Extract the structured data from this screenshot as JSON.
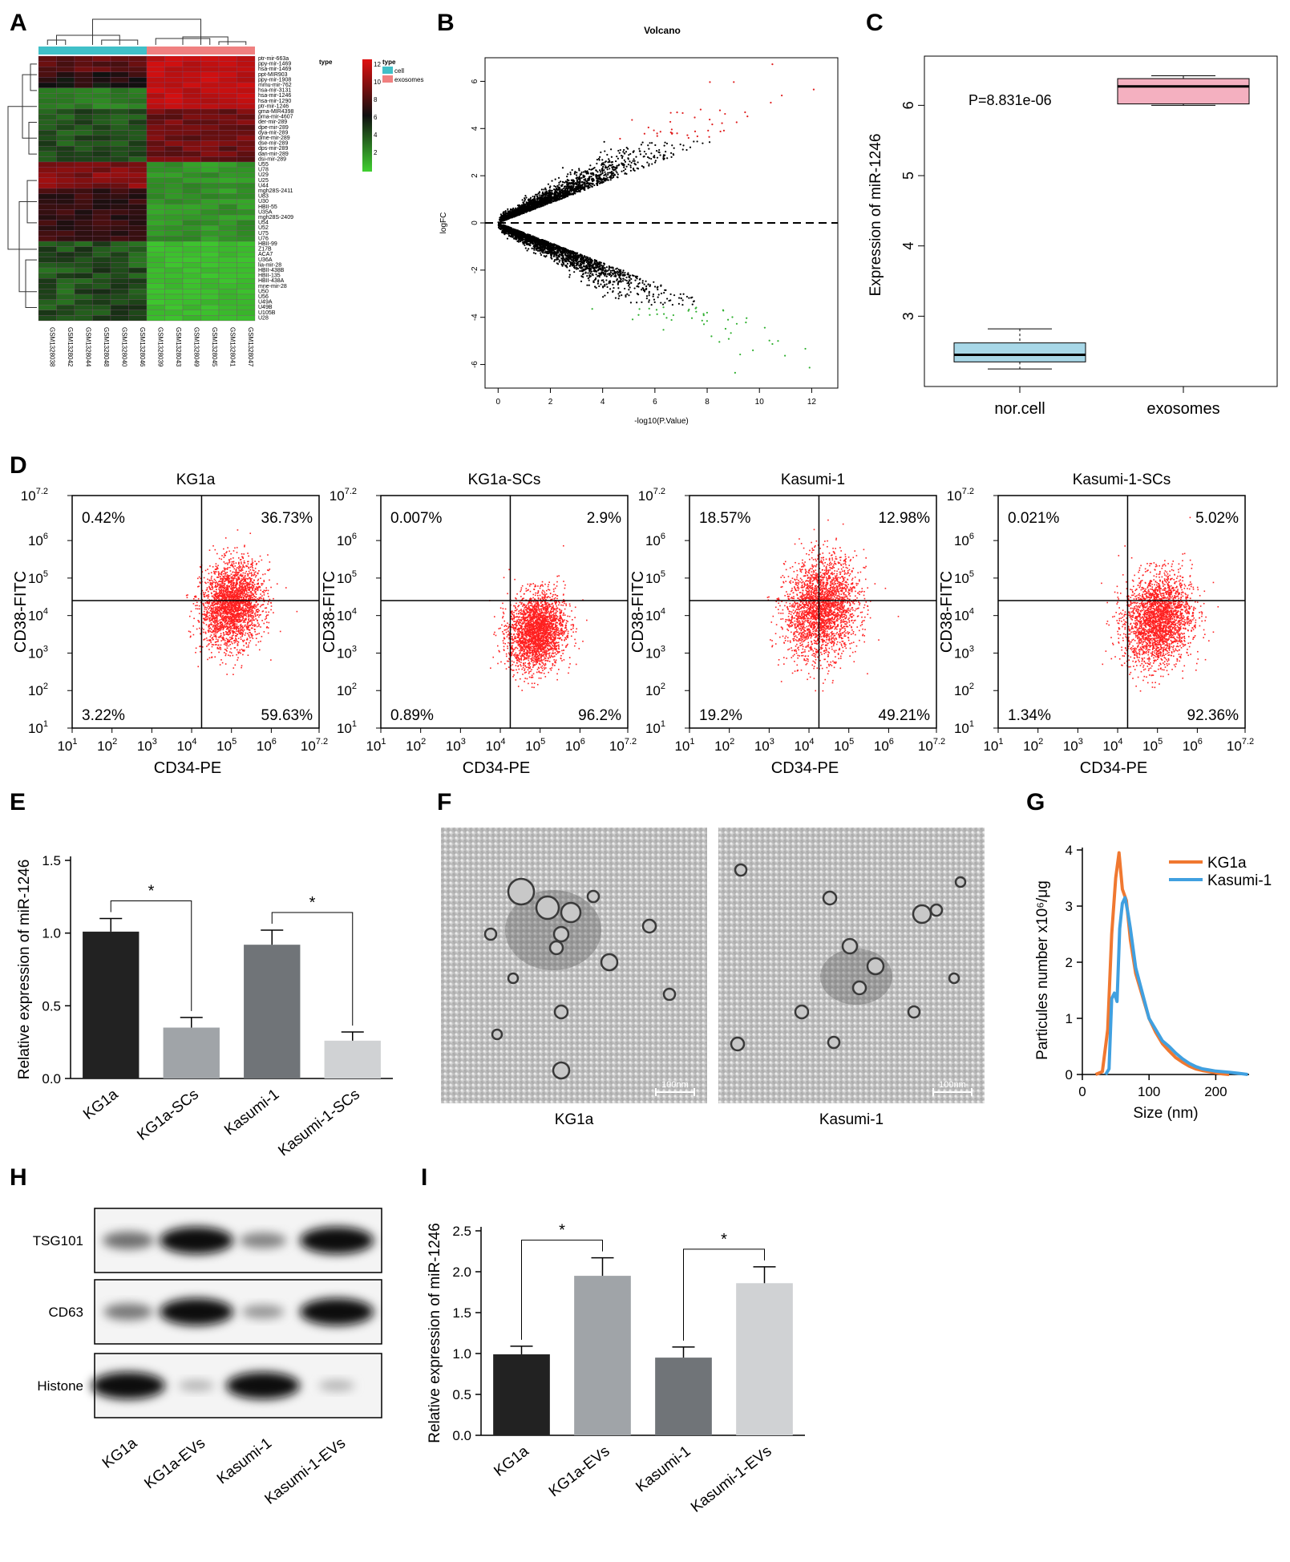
{
  "panel_letters": [
    "A",
    "B",
    "C",
    "D",
    "E",
    "F",
    "G",
    "H",
    "I"
  ],
  "colors": {
    "cell_bar": "#40c0c8",
    "exo_bar": "#f08080",
    "heat_hi": "#e01010",
    "heat_mid": "#101010",
    "heat_lo": "#40d030",
    "volcano_up": "#e02020",
    "volcano_down": "#30b030",
    "volcano_ns": "#000000",
    "box_cell": "#a8d8e8",
    "box_exo": "#f4b0c0",
    "flow_dot": "#ff2020",
    "bar_kg1a": "#222222",
    "bar_kg1a_scs": "#a0a4a8",
    "bar_kasumi": "#707478",
    "bar_kasumi_scs": "#d0d2d4",
    "line_kg1a": "#f07830",
    "line_kasumi": "#40a0e0"
  },
  "chart_data": [
    {
      "panel": "A",
      "type": "heatmap",
      "legend_title": "type",
      "legend_groups": [
        "cell",
        "exosomes"
      ],
      "scale_ticks": [
        "12",
        "10",
        "8",
        "6",
        "4",
        "2"
      ],
      "columns": [
        "GSM1328038",
        "GSM1328042",
        "GSM1328044",
        "GSM1328048",
        "GSM1328040",
        "GSM1328046",
        "GSM1328039",
        "GSM1328043",
        "GSM1328049",
        "GSM1328045",
        "GSM1328041",
        "GSM1328047"
      ],
      "rows": [
        "ptr-mir-663a",
        "ppy-mir-1469",
        "hsa-mir-1469",
        "ppt-MIR903",
        "ppy-mir-1908",
        "mmu-mir-762",
        "hsa-mir-3131",
        "hsa-mir-1246",
        "hsa-mir-1290",
        "ptr-mir-1246",
        "gma-MIR4398",
        "pma-mir-4607",
        "der-mir-289",
        "dpe-mir-289",
        "dya-mir-289",
        "dme-mir-289",
        "dse-mir-289",
        "dps-mir-289",
        "dan-mir-289",
        "dsi-mir-289",
        "U55",
        "U78",
        "U29",
        "U25",
        "U44",
        "mgh28S-2411",
        "U83",
        "U30",
        "HBII-55",
        "U35A",
        "mgh28S-2409",
        "U54",
        "U52",
        "U75",
        "U76",
        "HBII-99",
        "Z17B",
        "ACA7",
        "U36A",
        "lia-mir-28",
        "HBII-438B",
        "HBII-135",
        "HBII-438A",
        "mne-mir-28",
        "U50",
        "U56",
        "U49A",
        "U49B",
        "U105B",
        "U28"
      ]
    },
    {
      "panel": "B",
      "type": "scatter",
      "title": "Volcano",
      "xlabel": "-log10(P.Value)",
      "ylabel": "logFC",
      "xlim": [
        -0.5,
        13
      ],
      "ylim": [
        -7,
        7
      ],
      "xticks": [
        0,
        2,
        4,
        6,
        8,
        10,
        12
      ],
      "yticks": [
        -6,
        -4,
        -2,
        0,
        2,
        4,
        6
      ]
    },
    {
      "panel": "C",
      "type": "box",
      "ylabel": "Expression of miR-1246",
      "annotation": "P=8.831e-06",
      "ylim": [
        2,
        6.7
      ],
      "yticks": [
        3,
        4,
        5,
        6
      ],
      "categories": [
        "nor.cell",
        "exosomes"
      ],
      "boxes": [
        {
          "min": 2.25,
          "q1": 2.35,
          "median": 2.45,
          "q3": 2.62,
          "max": 2.82
        },
        {
          "min": 6.0,
          "q1": 6.02,
          "median": 6.27,
          "q3": 6.38,
          "max": 6.42
        }
      ]
    },
    {
      "panel": "D",
      "type": "scatter",
      "xlabel": "CD34-PE",
      "ylabel": "CD38-FITC",
      "ticks": [
        "10",
        "10",
        "10",
        "10",
        "10",
        "10",
        "10"
      ],
      "tick_exponents": [
        "1",
        "2",
        "3",
        "4",
        "5",
        "6",
        "7.2"
      ],
      "plots": [
        {
          "title": "KG1a",
          "quadrants": [
            "0.42%",
            "36.73%",
            "3.22%",
            "59.63%"
          ]
        },
        {
          "title": "KG1a-SCs",
          "quadrants": [
            "0.007%",
            "2.9%",
            "0.89%",
            "96.2%"
          ]
        },
        {
          "title": "Kasumi-1",
          "quadrants": [
            "18.57%",
            "12.98%",
            "19.2%",
            "49.21%"
          ]
        },
        {
          "title": "Kasumi-1-SCs",
          "quadrants": [
            "0.021%",
            "5.02%",
            "1.34%",
            "92.36%"
          ]
        }
      ]
    },
    {
      "panel": "E",
      "type": "bar",
      "ylabel": "Relative expression of miR-1246",
      "ylim": [
        0,
        1.5
      ],
      "yticks": [
        "0.0",
        "0.5",
        "1.0",
        "1.5"
      ],
      "categories": [
        "KG1a",
        "KG1a-SCs",
        "Kasumi-1",
        "Kasumi-1-SCs"
      ],
      "values": [
        1.01,
        0.35,
        0.92,
        0.26
      ],
      "errors": [
        0.09,
        0.07,
        0.1,
        0.06
      ],
      "significance": "*"
    },
    {
      "panel": "F",
      "type": "image",
      "captions": [
        "KG1a",
        "Kasumi-1"
      ],
      "scale_bar": "100nm"
    },
    {
      "panel": "G",
      "type": "line",
      "xlabel": "Size (nm)",
      "ylabel": "Particules number x10⁶/μg",
      "xlim": [
        0,
        250
      ],
      "ylim": [
        0,
        4
      ],
      "xticks": [
        0,
        100,
        200
      ],
      "yticks": [
        0,
        1,
        2,
        3,
        4
      ],
      "series": [
        {
          "name": "KG1a",
          "x": [
            20,
            30,
            38,
            44,
            50,
            55,
            60,
            66,
            72,
            80,
            90,
            100,
            110,
            120,
            130,
            140,
            150,
            160,
            170,
            180,
            190,
            200,
            210,
            220
          ],
          "values": [
            0,
            0.05,
            0.8,
            2.5,
            3.5,
            3.95,
            3.3,
            3.1,
            2.4,
            1.8,
            1.4,
            1.0,
            0.75,
            0.55,
            0.42,
            0.3,
            0.22,
            0.15,
            0.1,
            0.07,
            0.05,
            0.03,
            0.01,
            0
          ]
        },
        {
          "name": "Kasumi-1",
          "x": [
            35,
            40,
            44,
            48,
            52,
            56,
            60,
            64,
            68,
            72,
            80,
            90,
            100,
            110,
            120,
            130,
            140,
            150,
            160,
            170,
            180,
            190,
            200,
            210,
            220,
            235,
            248
          ],
          "values": [
            0,
            0.1,
            1.35,
            1.45,
            1.3,
            2.6,
            3.05,
            3.15,
            2.9,
            2.6,
            1.9,
            1.45,
            1.0,
            0.8,
            0.6,
            0.5,
            0.38,
            0.28,
            0.2,
            0.14,
            0.1,
            0.08,
            0.06,
            0.05,
            0.04,
            0.02,
            0
          ]
        }
      ]
    },
    {
      "panel": "H",
      "type": "blot",
      "bands": [
        "TSG101",
        "CD63",
        "Histone"
      ],
      "lanes": [
        "KG1a",
        "KG1a-EVs",
        "Kasumi-1",
        "Kasumi-1-EVs"
      ],
      "intensity": [
        [
          0.5,
          1.0,
          0.4,
          1.0
        ],
        [
          0.45,
          1.0,
          0.3,
          1.0
        ],
        [
          1.0,
          0.15,
          1.0,
          0.15
        ]
      ]
    },
    {
      "panel": "I",
      "type": "bar",
      "ylabel": "Relative expression of miR-1246",
      "ylim": [
        0,
        2.5
      ],
      "yticks": [
        "0.0",
        "0.5",
        "1.0",
        "1.5",
        "2.0",
        "2.5"
      ],
      "categories": [
        "KG1a",
        "KG1a-EVs",
        "Kasumi-1",
        "Kasumi-1-EVs"
      ],
      "values": [
        0.99,
        1.95,
        0.95,
        1.86
      ],
      "errors": [
        0.1,
        0.22,
        0.13,
        0.2
      ],
      "significance": "*"
    }
  ]
}
